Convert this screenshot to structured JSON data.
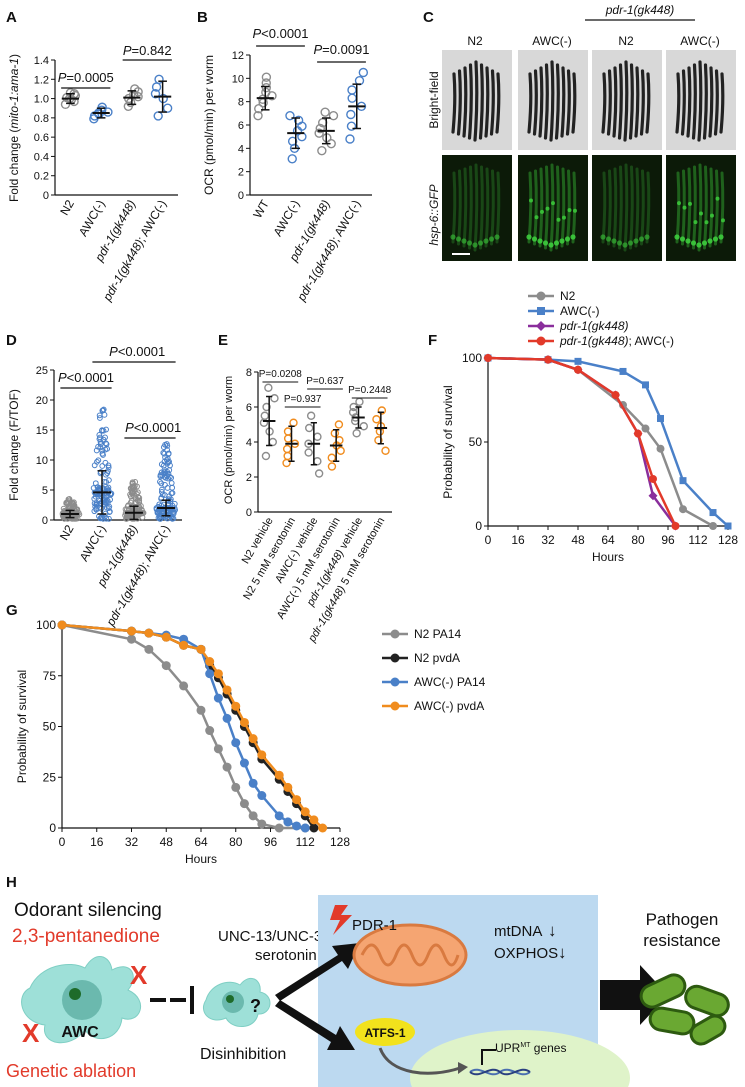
{
  "colors": {
    "gray": "#8c8c8c",
    "blue": "#4a80c8",
    "purple": "#8a2e9c",
    "red": "#e23a2a",
    "orange": "#f08c1e",
    "black": "#222222",
    "teal": "#9ee0d8",
    "lightblue": "#bcd9f0",
    "panelGreen": "#0c1a08",
    "gfp": "#3fd43f"
  },
  "panels": {
    "A": "A",
    "B": "B",
    "C": "C",
    "D": "D",
    "E": "E",
    "F": "F",
    "G": "G",
    "H": "H"
  },
  "chart_data": [
    {
      "panel": "A",
      "type": "scatter",
      "ylabel_pre": "Fold change (",
      "ylabel_italic": "mito-1:ama-1",
      "ylabel_post": ")",
      "ylim": [
        0,
        1.4
      ],
      "yticks": [
        "0",
        "0.2",
        "0.4",
        "0.6",
        "0.8",
        "1.0",
        "1.2",
        "1.4"
      ],
      "categories": [
        "N2",
        "AWC(-)",
        "pdr-1(gk448)",
        "pdr-1(gk448); AWC(-)"
      ],
      "groups": [
        {
          "name": "N2",
          "mean": 1.0,
          "sd": 0.05,
          "points": [
            0.94,
            0.97,
            0.99,
            1.0,
            1.01,
            1.03,
            1.05,
            1.06
          ]
        },
        {
          "name": "AWC(-)",
          "mean": 0.85,
          "sd": 0.05,
          "points": [
            0.79,
            0.82,
            0.84,
            0.85,
            0.86,
            0.88,
            0.91
          ]
        },
        {
          "name": "pdr-1(gk448)",
          "mean": 1.01,
          "sd": 0.07,
          "points": [
            0.92,
            0.96,
            1.0,
            1.02,
            1.04,
            1.07,
            1.1
          ]
        },
        {
          "name": "pdr-1(gk448); AWC(-)",
          "mean": 1.02,
          "sd": 0.16,
          "points": [
            0.82,
            0.9,
            1.0,
            1.05,
            1.12,
            1.2
          ]
        }
      ],
      "pvalues": [
        {
          "text_p": "P",
          "text_v": "=0.0005"
        },
        {
          "text_p": "P",
          "text_v": "=0.842"
        }
      ]
    },
    {
      "panel": "B",
      "type": "scatter",
      "ylabel": "OCR (pmol/min) per worm",
      "ylim": [
        0,
        12
      ],
      "yticks": [
        "0",
        "2",
        "4",
        "6",
        "8",
        "10",
        "12"
      ],
      "categories": [
        "WT",
        "AWC(-)",
        "pdr-1(gk448)",
        "pdr-1(gk448); AWC(-)"
      ],
      "groups": [
        {
          "name": "WT",
          "mean": 8.3,
          "sd": 1.0,
          "points": [
            6.8,
            7.4,
            7.9,
            8.2,
            8.5,
            8.8,
            9.2,
            9.6,
            10.1
          ]
        },
        {
          "name": "AWC(-)",
          "mean": 5.3,
          "sd": 1.3,
          "points": [
            3.1,
            4.0,
            4.6,
            5.0,
            5.5,
            5.9,
            6.4,
            6.8
          ]
        },
        {
          "name": "pdr-1(gk448)",
          "mean": 5.5,
          "sd": 1.1,
          "points": [
            3.8,
            4.4,
            4.9,
            5.3,
            5.7,
            6.2,
            6.8,
            7.1
          ]
        },
        {
          "name": "pdr-1(gk448); AWC(-)",
          "mean": 7.6,
          "sd": 1.9,
          "points": [
            4.8,
            5.9,
            6.9,
            7.6,
            8.3,
            9.0,
            9.8,
            10.5
          ]
        }
      ],
      "pvalues": [
        {
          "text_p": "P",
          "text_v": "<0.0001"
        },
        {
          "text_p": "P",
          "text_v": "=0.0091"
        }
      ]
    },
    {
      "panel": "D",
      "type": "scatter",
      "ylabel": "Fold change (F/TOF)",
      "ylim": [
        0,
        25
      ],
      "yticks": [
        "0",
        "5",
        "10",
        "15",
        "20",
        "25"
      ],
      "categories": [
        "N2",
        "AWC(-)",
        "pdr-1(gk448)",
        "pdr-1(gk448); AWC(-)"
      ],
      "groups": [
        {
          "name": "N2",
          "mean": 1.0,
          "sd": 0.6,
          "max": 3.5
        },
        {
          "name": "AWC(-)",
          "mean": 4.6,
          "sd": 3.6,
          "max": 19.5
        },
        {
          "name": "pdr-1(gk448)",
          "mean": 1.2,
          "sd": 1.1,
          "max": 6.5
        },
        {
          "name": "pdr-1(gk448); AWC(-)",
          "mean": 2.0,
          "sd": 1.3,
          "max": 13.0
        }
      ],
      "pvalues": [
        {
          "text_p": "P",
          "text_v": "<0.0001"
        },
        {
          "text_p": "P",
          "text_v": "<0.0001"
        },
        {
          "text_p": "P",
          "text_v": "<0.0001"
        }
      ]
    },
    {
      "panel": "E",
      "type": "scatter",
      "ylabel": "OCR (pmol/min) per worm",
      "ylim": [
        0,
        8
      ],
      "yticks": [
        "0",
        "2",
        "4",
        "6",
        "8"
      ],
      "categories": [
        "N2 vehicle",
        "N2 5 mM serotonin",
        "AWC(-) vehicle",
        "AWC(-) 5 mM serotonin",
        "pdr-1(gk448) vehicle",
        "pdr-1(gk448) 5 mM serotonin"
      ],
      "groups": [
        {
          "name": "N2 vehicle",
          "mean": 5.2,
          "sd": 1.4,
          "points": [
            3.2,
            4.0,
            4.6,
            5.1,
            5.5,
            6.0,
            6.5,
            7.1
          ]
        },
        {
          "name": "N2 5 mM serotonin",
          "mean": 3.9,
          "sd": 1.0,
          "points": [
            2.8,
            3.2,
            3.6,
            3.9,
            4.2,
            4.6,
            5.1
          ]
        },
        {
          "name": "AWC(-) vehicle",
          "mean": 3.9,
          "sd": 1.2,
          "points": [
            2.2,
            2.9,
            3.4,
            3.9,
            4.3,
            4.8,
            5.5
          ]
        },
        {
          "name": "AWC(-) 5 mM serotonin",
          "mean": 3.8,
          "sd": 0.9,
          "points": [
            2.6,
            3.1,
            3.5,
            3.8,
            4.1,
            4.5,
            5.0
          ]
        },
        {
          "name": "pdr-1(gk448) vehicle",
          "mean": 5.4,
          "sd": 0.6,
          "points": [
            4.5,
            4.9,
            5.2,
            5.4,
            5.7,
            6.0,
            6.3
          ]
        },
        {
          "name": "pdr-1(gk448) 5 mM serotonin",
          "mean": 4.8,
          "sd": 0.9,
          "points": [
            3.5,
            4.1,
            4.6,
            4.9,
            5.3,
            5.8
          ]
        }
      ],
      "pvalues": [
        {
          "text": "P=0.0208"
        },
        {
          "text": "P=0.937"
        },
        {
          "text": "P=0.637"
        },
        {
          "text": "P=0.2448"
        }
      ]
    },
    {
      "panel": "F",
      "type": "line",
      "ylabel": "Probability of survival",
      "xlabel": "Hours",
      "xlim": [
        0,
        128
      ],
      "ylim": [
        0,
        100
      ],
      "xticks": [
        "0",
        "16",
        "32",
        "48",
        "64",
        "80",
        "96",
        "112",
        "128"
      ],
      "yticks": [
        "0",
        "50",
        "100"
      ],
      "series": [
        {
          "name": "N2",
          "color": "gray",
          "marker": "circle",
          "x": [
            0,
            32,
            48,
            72,
            84,
            92,
            104,
            120
          ],
          "y": [
            100,
            99,
            93,
            72,
            58,
            46,
            10,
            0
          ]
        },
        {
          "name": "AWC(-)",
          "color": "blue",
          "marker": "square",
          "x": [
            0,
            32,
            48,
            72,
            84,
            92,
            104,
            120,
            128
          ],
          "y": [
            100,
            99,
            98,
            92,
            84,
            64,
            27,
            8,
            0
          ]
        },
        {
          "name": "pdr-1(gk448)",
          "color": "purple",
          "marker": "diamond",
          "x": [
            0,
            32,
            48,
            68,
            80,
            88,
            100
          ],
          "y": [
            100,
            99,
            93,
            78,
            55,
            18,
            0
          ]
        },
        {
          "name": "pdr-1(gk448); AWC(-)",
          "color": "red",
          "marker": "circle",
          "x": [
            0,
            32,
            48,
            68,
            80,
            88,
            100
          ],
          "y": [
            100,
            99,
            93,
            78,
            55,
            28,
            0
          ]
        }
      ]
    },
    {
      "panel": "G",
      "type": "line",
      "ylabel": "Probability of survival",
      "xlabel": "Hours",
      "xlim": [
        0,
        128
      ],
      "ylim": [
        0,
        100
      ],
      "xticks": [
        "0",
        "16",
        "32",
        "48",
        "64",
        "80",
        "96",
        "112",
        "128"
      ],
      "yticks": [
        "0",
        "25",
        "50",
        "75",
        "100"
      ],
      "series": [
        {
          "name": "N2 PA14",
          "color": "gray",
          "x": [
            0,
            32,
            40,
            48,
            56,
            64,
            68,
            72,
            76,
            80,
            84,
            88,
            92,
            100,
            112
          ],
          "y": [
            100,
            93,
            88,
            80,
            70,
            58,
            48,
            39,
            30,
            20,
            12,
            6,
            2,
            0,
            0
          ]
        },
        {
          "name": "N2 pvdA",
          "color": "black",
          "x": [
            0,
            32,
            40,
            48,
            56,
            64,
            68,
            72,
            76,
            80,
            84,
            88,
            92,
            100,
            104,
            108,
            112,
            116
          ],
          "y": [
            100,
            97,
            96,
            94,
            90,
            88,
            80,
            74,
            66,
            58,
            50,
            42,
            34,
            24,
            18,
            12,
            6,
            0
          ]
        },
        {
          "name": "AWC(-) PA14",
          "color": "blue",
          "x": [
            0,
            32,
            40,
            48,
            56,
            64,
            68,
            72,
            76,
            80,
            84,
            88,
            92,
            100,
            104,
            108,
            112
          ],
          "y": [
            100,
            97,
            96,
            95,
            93,
            88,
            76,
            64,
            54,
            42,
            32,
            22,
            16,
            6,
            3,
            1,
            0
          ]
        },
        {
          "name": "AWC(-) pvdA",
          "color": "orange",
          "x": [
            0,
            32,
            40,
            48,
            56,
            64,
            68,
            72,
            76,
            80,
            84,
            88,
            92,
            100,
            104,
            108,
            112,
            116,
            120
          ],
          "y": [
            100,
            97,
            96,
            94,
            90,
            88,
            82,
            76,
            68,
            60,
            52,
            44,
            36,
            26,
            20,
            14,
            8,
            4,
            0
          ]
        }
      ]
    }
  ],
  "panelC": {
    "genotype_label": "pdr-1(gk448)",
    "columns": [
      "N2",
      "AWC(-)",
      "N2",
      "AWC(-)"
    ],
    "row1": "Bright-field",
    "row2": "hsp-6::GFP"
  },
  "panelH": {
    "title": "Odorant silencing",
    "odorant": "2,3-pentanedione",
    "neuron": "AWC",
    "ablation": "Genetic ablation",
    "disinhibition": "Disinhibition",
    "question": "?",
    "mediators_line1": "UNC-13/UNC-31/",
    "mediators_line2": "serotonin",
    "pdr": "PDR-1",
    "mtdna": "mtDNA",
    "oxphos": "OXPHOS",
    "down": "↓",
    "atfs": "ATFS-1",
    "upr": "UPR",
    "upr_sup": "MT",
    "genes": " genes",
    "resistance_line1": "Pathogen",
    "resistance_line2": "resistance",
    "x_mark": "X"
  }
}
